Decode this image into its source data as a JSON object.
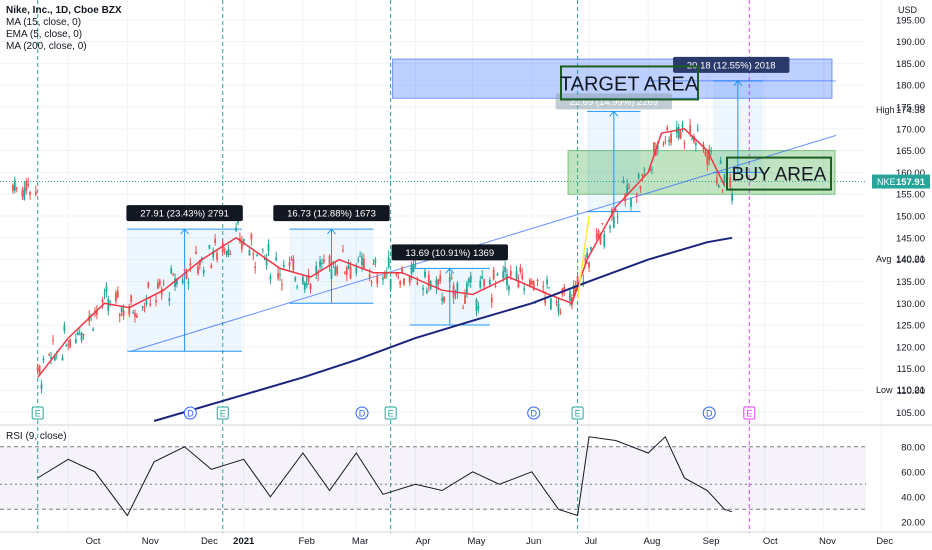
{
  "legend": {
    "symbol": "Nike, Inc., 1D, Cboe BZX",
    "ma15": "MA (15, close, 0)",
    "ema5": "EMA (5, close, 0)",
    "ma200": "MA (200, close, 0)"
  },
  "currency": "USD",
  "rsi_label": "RSI (9, close)",
  "colors": {
    "candle_up": "#26a69a",
    "candle_down": "#ef5350",
    "ma15": "#f23645",
    "ema5": "#ffeb3b",
    "ma200": "#1a237e",
    "rsi_line": "#131722",
    "rsi_band": "#7e57c2",
    "target_zone": "#2962ff",
    "buy_zone": "#4caf50",
    "measure": "#2196f3"
  },
  "chart_data": [
    {
      "type": "candlestick",
      "title": "Nike, Inc., 1D, Cboe BZX",
      "ylabel": "USD",
      "ylim": [
        103,
        200
      ],
      "y_ticks": [
        105,
        110,
        115,
        120,
        125,
        130,
        135,
        140,
        145,
        150,
        155,
        160,
        165,
        170,
        175,
        180,
        185,
        190,
        195,
        200
      ],
      "x_ticks": [
        "Oct",
        "Nov",
        "Dec",
        "2021",
        "Feb",
        "Mar",
        "Apr",
        "May",
        "Jun",
        "Jul",
        "Aug",
        "Sep",
        "Oct",
        "Nov",
        "Dec"
      ],
      "series": [
        {
          "name": "MA (15, close, 0)",
          "color": "#f23645",
          "x": [
            "2020-09-15",
            "2020-10-01",
            "2020-10-20",
            "2020-11-02",
            "2020-11-20",
            "2020-12-10",
            "2020-12-28",
            "2021-01-20",
            "2021-02-05",
            "2021-02-20",
            "2021-03-10",
            "2021-03-25",
            "2021-04-15",
            "2021-05-01",
            "2021-05-20",
            "2021-06-10",
            "2021-06-22",
            "2021-06-30",
            "2021-07-15",
            "2021-08-01",
            "2021-08-08",
            "2021-08-20",
            "2021-09-01",
            "2021-09-10"
          ],
          "values": [
            113,
            122,
            130,
            129,
            133,
            140,
            145,
            138,
            136,
            140,
            137,
            137,
            133,
            132,
            136,
            132,
            130,
            140,
            152,
            160,
            169,
            170,
            165,
            157
          ]
        },
        {
          "name": "MA (200, close, 0)",
          "color": "#1a237e",
          "x": [
            "2020-11-15",
            "2021-01-01",
            "2021-02-01",
            "2021-03-01",
            "2021-04-01",
            "2021-05-01",
            "2021-06-01",
            "2021-07-01",
            "2021-08-01",
            "2021-09-01",
            "2021-09-14"
          ],
          "values": [
            103,
            109,
            113,
            117,
            122,
            126,
            130,
            135,
            140,
            144,
            145
          ]
        }
      ],
      "price_labels": {
        "current": "157.91",
        "high": "174.38",
        "avg": "140.21",
        "low": "110.21"
      },
      "price_label_names": {
        "symbol": "NKE",
        "high": "High",
        "avg": "Avg",
        "low": "Low"
      },
      "zones": [
        {
          "label": "TARGET AREA",
          "from": 177,
          "to": 186
        },
        {
          "label": "BUY AREA",
          "from": 155,
          "to": 165
        }
      ],
      "measurements": [
        {
          "label": "27.91 (23.43%) 2791",
          "from": 119,
          "to": 147
        },
        {
          "label": "16.73 (12.88%) 1673",
          "from": 130,
          "to": 147
        },
        {
          "label": "13.69 (10.91%) 1369",
          "from": 125,
          "to": 138
        },
        {
          "label": "22.69 (14.99%) 2269",
          "from": 151,
          "to": 174
        },
        {
          "label": "20.18 (12.55%) 2018",
          "from": 160,
          "to": 181
        }
      ],
      "event_markers": [
        "E",
        "D",
        "E",
        "D",
        "E",
        "D",
        "E",
        "D",
        "E"
      ]
    },
    {
      "type": "line",
      "title": "RSI (9, close)",
      "ylim": [
        15,
        95
      ],
      "y_ticks": [
        20,
        40,
        60,
        80
      ],
      "y_tick_labels": [
        "20.00",
        "40.00",
        "60.00",
        "80.00"
      ],
      "bands": [
        30,
        50,
        80
      ],
      "x": [
        "2020-09-15",
        "2020-10-01",
        "2020-10-15",
        "2020-11-01",
        "2020-11-15",
        "2020-12-01",
        "2020-12-15",
        "2021-01-01",
        "2021-01-15",
        "2021-02-01",
        "2021-02-15",
        "2021-03-01",
        "2021-03-15",
        "2021-04-01",
        "2021-04-15",
        "2021-05-01",
        "2021-05-15",
        "2021-06-01",
        "2021-06-15",
        "2021-06-25",
        "2021-07-01",
        "2021-07-15",
        "2021-08-01",
        "2021-08-10",
        "2021-08-20",
        "2021-09-01",
        "2021-09-10",
        "2021-09-14"
      ],
      "values": [
        55,
        70,
        60,
        25,
        68,
        80,
        62,
        70,
        40,
        75,
        45,
        75,
        42,
        50,
        45,
        60,
        50,
        60,
        30,
        25,
        88,
        85,
        75,
        88,
        55,
        45,
        30,
        28
      ]
    }
  ]
}
